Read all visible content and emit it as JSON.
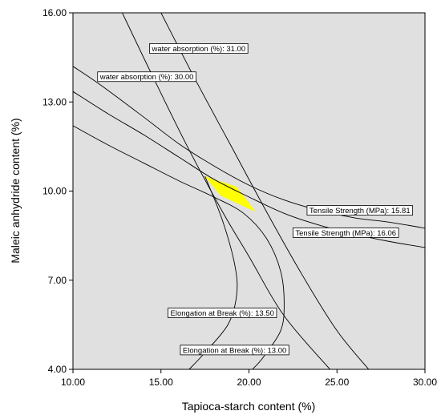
{
  "chart_data": {
    "type": "contour-overlay",
    "xlabel": "Tapioca-starch content (%)",
    "ylabel": "Maleic anhydride content (%)",
    "xlim": [
      10,
      30
    ],
    "ylim": [
      4,
      16
    ],
    "xticks": [
      "10.00",
      "15.00",
      "20.00",
      "25.00",
      "30.00"
    ],
    "yticks": [
      "4.00",
      "7.00",
      "10.00",
      "13.00",
      "16.00"
    ],
    "grid": false,
    "plot_background": "#e0e0e0",
    "feasible_region_color": "#ffff00",
    "contours": [
      {
        "label": "Tensile Strength (MPa): 15.81",
        "points": [
          [
            10,
            14.2
          ],
          [
            11.5,
            13.6
          ],
          [
            14,
            12.5
          ],
          [
            16,
            11.6
          ],
          [
            18,
            10.85
          ],
          [
            20,
            10.2
          ],
          [
            22,
            9.7
          ],
          [
            24,
            9.35
          ],
          [
            26,
            9.1
          ],
          [
            28,
            8.95
          ],
          [
            30,
            8.75
          ]
        ]
      },
      {
        "label": "Tensile Strength (MPa): 16.06",
        "points": [
          [
            10,
            13.35
          ],
          [
            12,
            12.6
          ],
          [
            14,
            11.9
          ],
          [
            16,
            11.15
          ],
          [
            18,
            10.4
          ],
          [
            20,
            9.8
          ],
          [
            22,
            9.25
          ],
          [
            24,
            8.85
          ],
          [
            26,
            8.55
          ],
          [
            28,
            8.3
          ],
          [
            30,
            8.1
          ]
        ]
      },
      {
        "label": "water absorption (%): 31.00",
        "points": [
          [
            15,
            16
          ],
          [
            17,
            13.7
          ],
          [
            19,
            11.5
          ],
          [
            21,
            9.3
          ],
          [
            23,
            7.2
          ],
          [
            25,
            5.3
          ],
          [
            26.8,
            4
          ]
        ]
      },
      {
        "label": "water absorption (%): 30.00",
        "points": [
          [
            12.8,
            16
          ],
          [
            14.5,
            13.9
          ],
          [
            16.5,
            11.5
          ],
          [
            18.5,
            9.3
          ],
          [
            20,
            7.8
          ],
          [
            22,
            5.8
          ],
          [
            24.6,
            4
          ]
        ]
      },
      {
        "label": "Elongation at Break (%): 13.50",
        "points": [
          [
            17.5,
            10.5
          ],
          [
            18.5,
            9.0
          ],
          [
            19.2,
            7.5
          ],
          [
            19.3,
            6.5
          ],
          [
            18.8,
            5.5
          ],
          [
            17.4,
            4.5
          ],
          [
            16.6,
            4
          ]
        ]
      },
      {
        "label": "Elongation at Break (%): 13.00",
        "points": [
          [
            10,
            12.2
          ],
          [
            12,
            11.55
          ],
          [
            14,
            10.95
          ],
          [
            16,
            10.35
          ],
          [
            18,
            9.8
          ],
          [
            19.7,
            9.25
          ],
          [
            21,
            8.4
          ],
          [
            21.8,
            7.3
          ],
          [
            22,
            6.2
          ],
          [
            21.8,
            5.3
          ],
          [
            20.8,
            4.4
          ],
          [
            20.2,
            4
          ]
        ]
      }
    ],
    "feasible_region": [
      [
        17.5,
        10.5
      ],
      [
        19.3,
        10.15
      ],
      [
        20.4,
        9.3
      ],
      [
        18.4,
        9.85
      ]
    ],
    "annotations": [
      {
        "text": "water absorption (%): 31.00",
        "at": [
          14.35,
          14.8
        ]
      },
      {
        "text": "water absorption (%): 30.00",
        "at": [
          11.4,
          13.85
        ]
      },
      {
        "text": "Tensile Strength (MPa): 15.81",
        "at": [
          23.3,
          9.35
        ]
      },
      {
        "text": "Tensile Strength (MPa): 16.06",
        "at": [
          22.5,
          8.6
        ]
      },
      {
        "text": "Elongation at Break (%): 13.50",
        "at": [
          15.4,
          5.9
        ]
      },
      {
        "text": "Elongation at Break (%): 13.00",
        "at": [
          16.1,
          4.65
        ]
      }
    ]
  }
}
